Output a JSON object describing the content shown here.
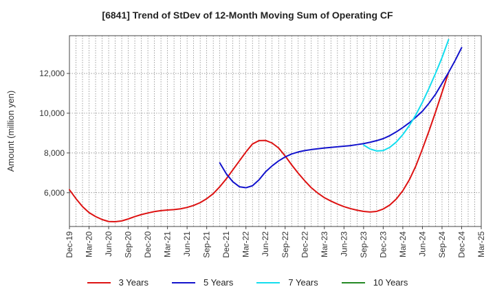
{
  "chart_data": {
    "type": "line",
    "title": "[6841]  Trend of StDev of 12-Month Moving Sum of Operating CF",
    "ylabel": "Amount (million yen)",
    "xlabel": "",
    "ylim": [
      4300,
      13900
    ],
    "yticks": [
      6000,
      8000,
      10000,
      12000
    ],
    "ytick_labels": [
      "6,000",
      "8,000",
      "10,000",
      "12,000"
    ],
    "x_start": "Dec-19",
    "xtick_labels": [
      "Dec-19",
      "Mar-20",
      "Jun-20",
      "Sep-20",
      "Dec-20",
      "Mar-21",
      "Jun-21",
      "Sep-21",
      "Dec-21",
      "Mar-22",
      "Jun-22",
      "Sep-22",
      "Dec-22",
      "Mar-23",
      "Jun-23",
      "Sep-23",
      "Dec-23",
      "Mar-24",
      "Jun-24",
      "Sep-24",
      "Dec-24",
      "Mar-25"
    ],
    "grid": true,
    "legend_position": "bottom",
    "series": [
      {
        "name": "3 Years",
        "color": "#dd1111",
        "start": "Dec-19",
        "values": [
          6150,
          5700,
          5300,
          5000,
          4800,
          4650,
          4550,
          4540,
          4580,
          4680,
          4800,
          4900,
          4980,
          5050,
          5100,
          5130,
          5150,
          5190,
          5260,
          5360,
          5500,
          5700,
          5950,
          6300,
          6700,
          7150,
          7600,
          8050,
          8450,
          8620,
          8630,
          8500,
          8250,
          7850,
          7400,
          6980,
          6600,
          6250,
          5980,
          5750,
          5580,
          5430,
          5300,
          5200,
          5120,
          5060,
          5030,
          5060,
          5180,
          5380,
          5680,
          6100,
          6650,
          7350,
          8200,
          9100,
          10050,
          11050,
          12050
        ]
      },
      {
        "name": "5 Years",
        "color": "#1111cc",
        "start": "Nov-21",
        "values": [
          7500,
          6950,
          6550,
          6300,
          6250,
          6350,
          6650,
          7050,
          7350,
          7600,
          7800,
          7950,
          8050,
          8120,
          8170,
          8210,
          8250,
          8280,
          8310,
          8340,
          8370,
          8420,
          8470,
          8540,
          8620,
          8720,
          8870,
          9060,
          9280,
          9520,
          9800,
          10100,
          10500,
          10950,
          11500,
          12050,
          12650,
          13300
        ]
      },
      {
        "name": "7 Years",
        "color": "#11ddee",
        "start": "Sep-23",
        "values": [
          8400,
          8200,
          8100,
          8120,
          8280,
          8550,
          8920,
          9380,
          9920,
          10550,
          11250,
          12000,
          12800,
          13700
        ]
      },
      {
        "name": "10 Years",
        "color": "#228822",
        "start": "Dec-19",
        "values": []
      }
    ]
  }
}
